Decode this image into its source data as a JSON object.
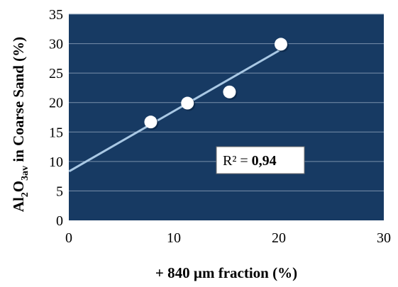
{
  "chart_data": {
    "type": "scatter",
    "title": "",
    "xlabel": "+ 840 µm fraction (%)",
    "ylabel": {
      "parts": [
        {
          "text": "Al",
          "sub": false
        },
        {
          "text": "2",
          "sub": true
        },
        {
          "text": "O",
          "sub": false
        },
        {
          "text": "3av",
          "sub": true
        },
        {
          "text": " in Coarse Sand (%)",
          "sub": false
        }
      ]
    },
    "xlim": [
      0,
      30
    ],
    "ylim": [
      0,
      35
    ],
    "xticks": [
      0,
      10,
      20,
      30
    ],
    "yticks": [
      0,
      5,
      10,
      15,
      20,
      25,
      30,
      35
    ],
    "grid": "horizontal",
    "series": [
      {
        "x": [
          7.8,
          11.3,
          15.3,
          20.2
        ],
        "y": [
          16.7,
          19.9,
          21.8,
          29.9
        ]
      }
    ],
    "trendline": {
      "x": [
        0.1,
        20.2
      ],
      "y": [
        8.4,
        29.0
      ]
    },
    "r2": {
      "prefix": "R² = ",
      "value": "0,94"
    },
    "colors": {
      "plot_background": "#173a63",
      "gridline": "#7a90ab",
      "marker": "#ffffff",
      "trendline": "#a9c8e4"
    }
  }
}
